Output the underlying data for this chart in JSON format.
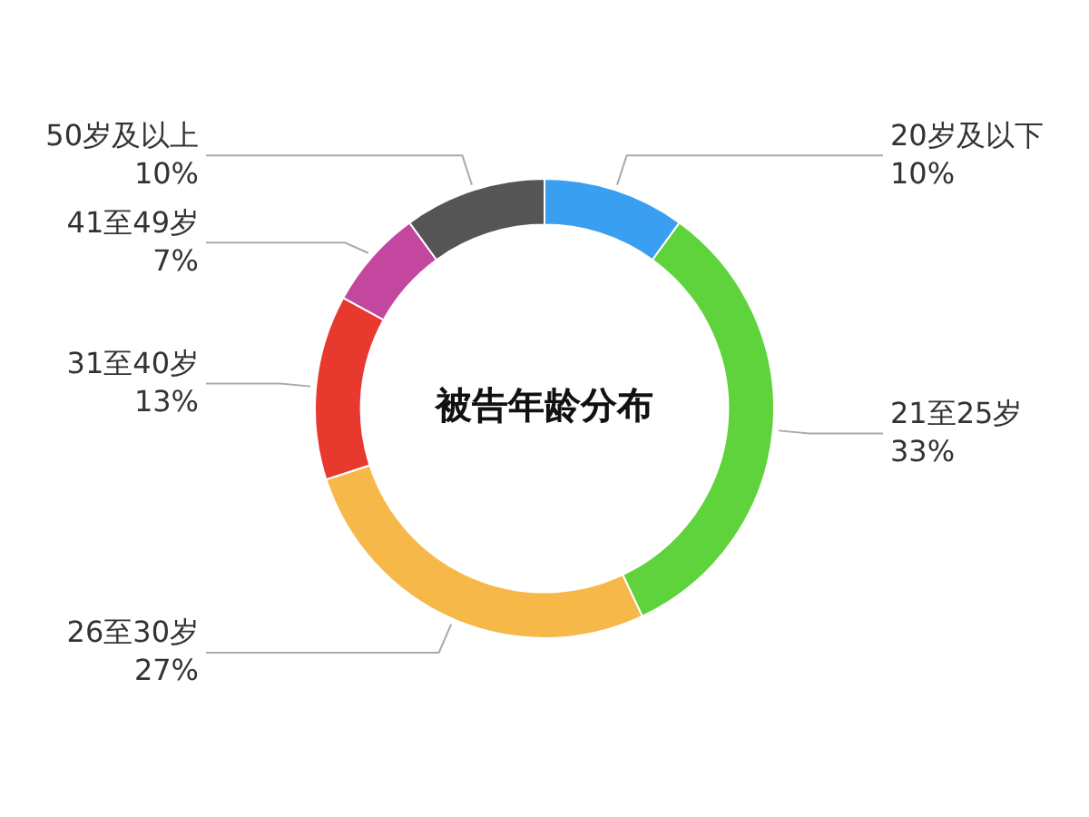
{
  "chart_data": {
    "type": "donut",
    "title": "被告年龄分布",
    "categories": [
      "20岁及以下",
      "21至25岁",
      "26至30岁",
      "31至40岁",
      "41至49岁",
      "50岁及以上"
    ],
    "values": [
      10,
      33,
      27,
      13,
      7,
      10
    ],
    "value_labels": [
      "10%",
      "33%",
      "27%",
      "13%",
      "7%",
      "10%"
    ],
    "colors": [
      "#3a9ff0",
      "#5fd33c",
      "#f7b84a",
      "#e8392f",
      "#c4479f",
      "#555555"
    ],
    "legend": false
  }
}
